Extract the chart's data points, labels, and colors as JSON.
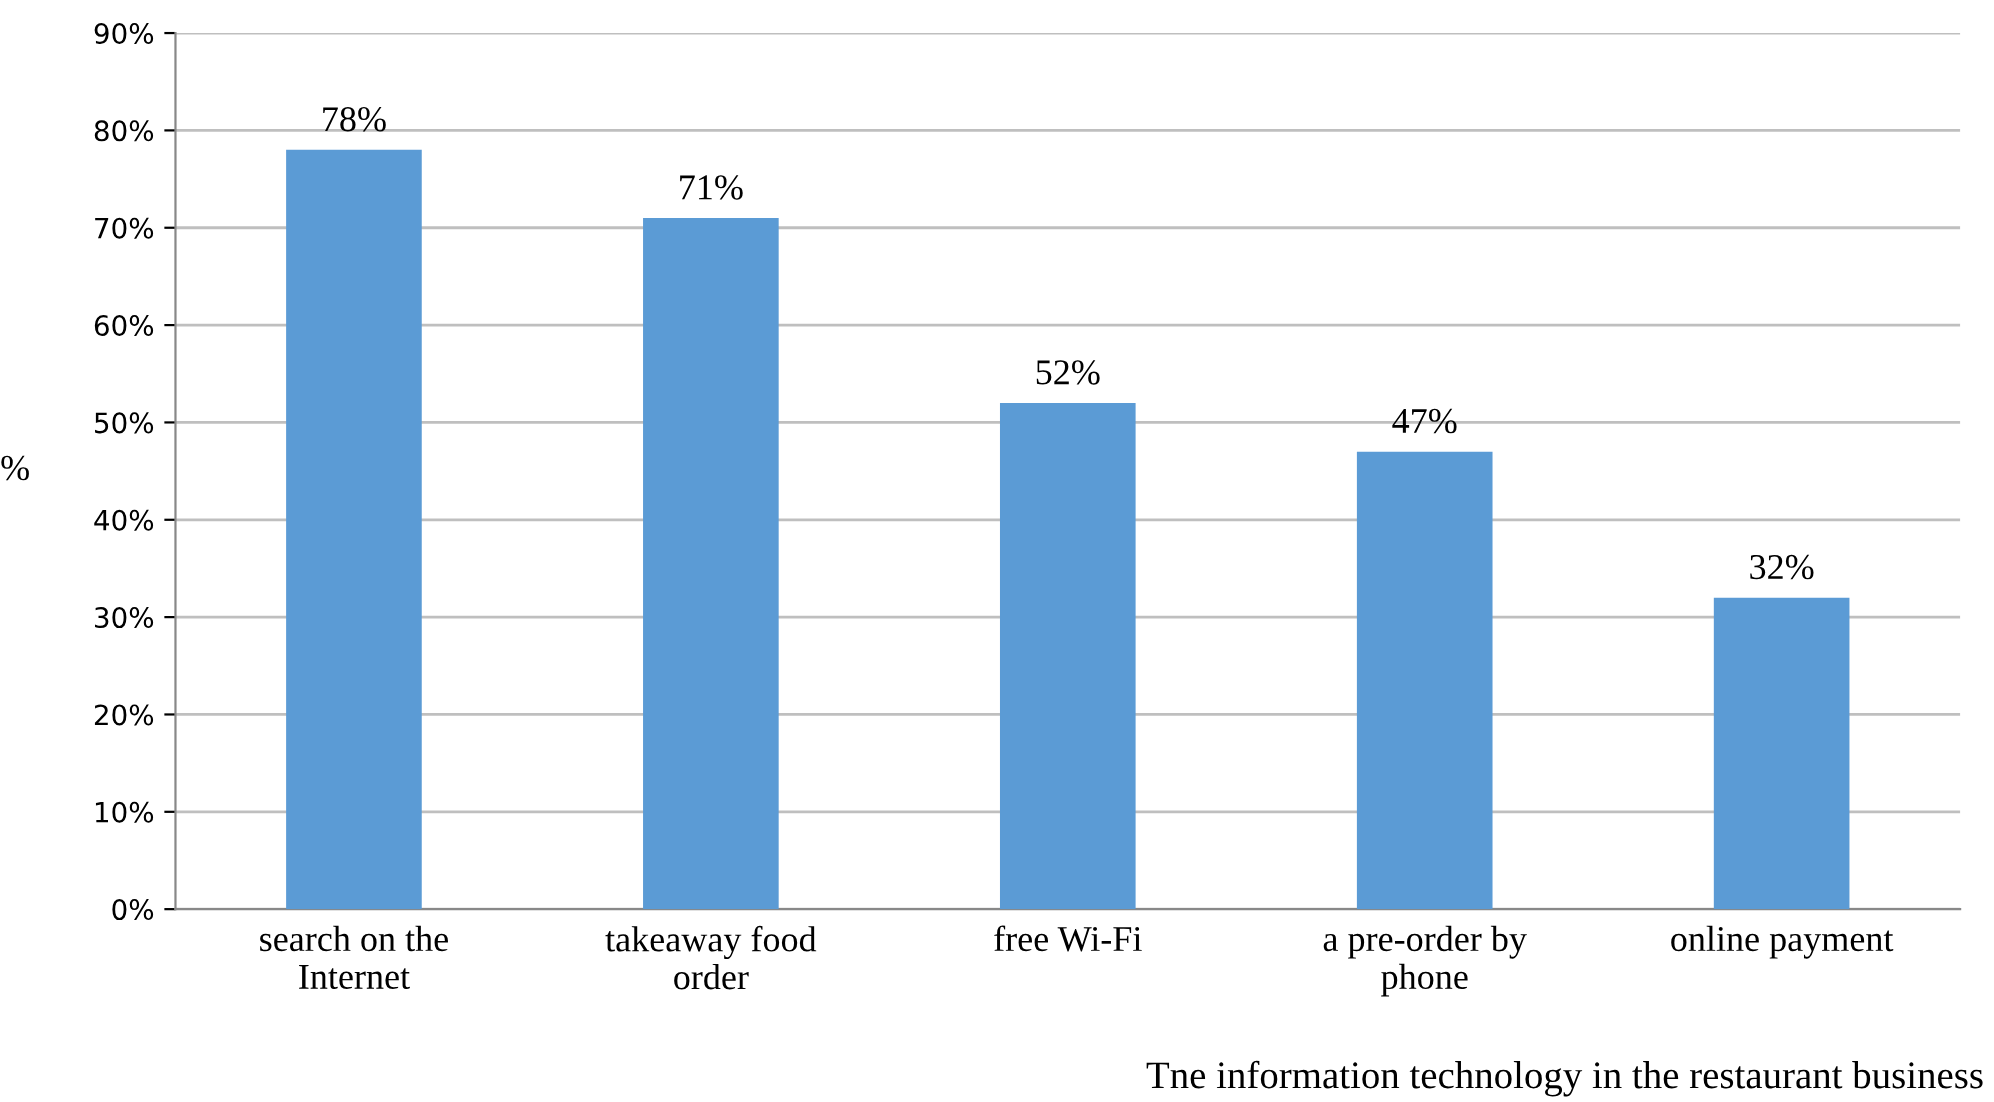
{
  "chart_data": {
    "type": "bar",
    "categories": [
      "search on the\nInternet",
      "takeaway food\norder",
      "free Wi-Fi",
      "a pre-order by\nphone",
      "online payment"
    ],
    "values": [
      78,
      71,
      52,
      47,
      32
    ],
    "value_labels": [
      "78%",
      "71%",
      "52%",
      "47%",
      "32%"
    ],
    "color": "#5b9bd5",
    "ylim": [
      0,
      90
    ],
    "yticks": [
      {
        "value": 0,
        "label": "0%"
      },
      {
        "value": 10,
        "label": "10%"
      },
      {
        "value": 20,
        "label": "20%"
      },
      {
        "value": 30,
        "label": "30%"
      },
      {
        "value": 40,
        "label": "40%"
      },
      {
        "value": 50,
        "label": "50%"
      },
      {
        "value": 60,
        "label": "60%"
      },
      {
        "value": 70,
        "label": "70%"
      },
      {
        "value": 80,
        "label": "80%"
      },
      {
        "value": 90,
        "label": "90%"
      }
    ],
    "ylabel": "%",
    "xlabel": "Tne information technology in the restaurant business",
    "grid": "y"
  }
}
